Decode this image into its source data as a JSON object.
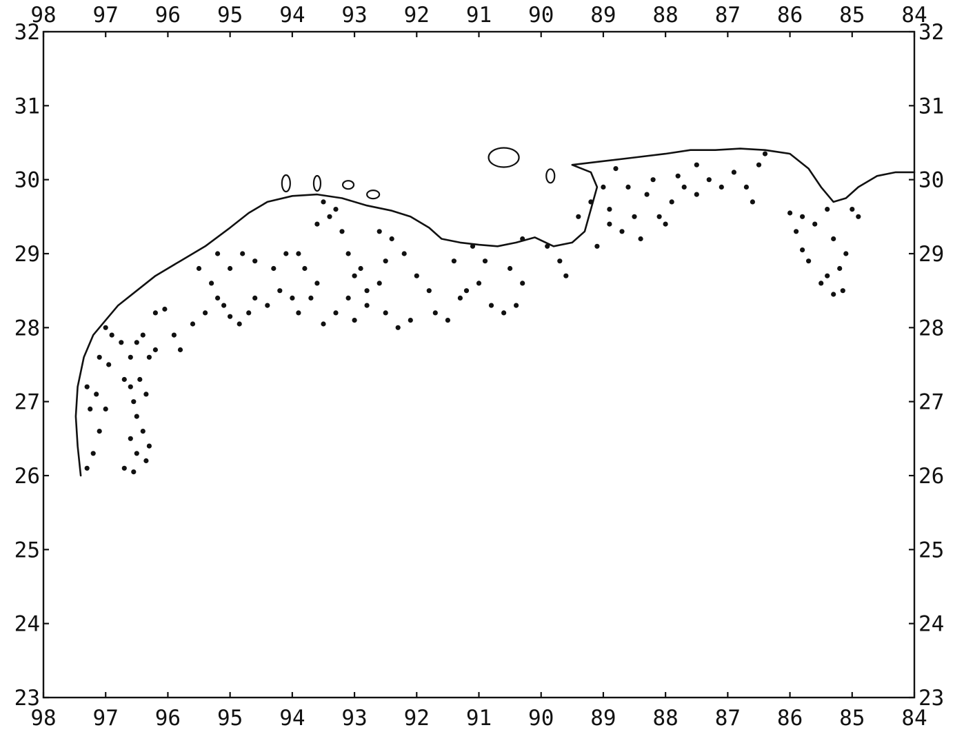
{
  "map": {
    "lon_range": [
      98,
      84
    ],
    "lat_range": [
      23,
      32
    ],
    "lon_ticks": [
      "98",
      "97",
      "96",
      "95",
      "94",
      "93",
      "92",
      "91",
      "90",
      "89",
      "88",
      "87",
      "86",
      "85",
      "84"
    ],
    "lat_ticks": [
      "23",
      "24",
      "25",
      "26",
      "27",
      "28",
      "29",
      "30",
      "31",
      "32"
    ],
    "colors": {
      "ink": "#111111",
      "background": "#ffffff"
    },
    "coastline": [
      [
        97.4,
        26.0
      ],
      [
        97.45,
        26.4
      ],
      [
        97.48,
        26.8
      ],
      [
        97.45,
        27.2
      ],
      [
        97.35,
        27.6
      ],
      [
        97.2,
        27.9
      ],
      [
        97.0,
        28.1
      ],
      [
        96.8,
        28.3
      ],
      [
        96.5,
        28.5
      ],
      [
        96.2,
        28.7
      ],
      [
        95.8,
        28.9
      ],
      [
        95.4,
        29.1
      ],
      [
        95.0,
        29.35
      ],
      [
        94.7,
        29.55
      ],
      [
        94.4,
        29.7
      ],
      [
        94.0,
        29.78
      ],
      [
        93.6,
        29.8
      ],
      [
        93.2,
        29.75
      ],
      [
        92.8,
        29.65
      ],
      [
        92.4,
        29.58
      ],
      [
        92.1,
        29.5
      ],
      [
        91.8,
        29.35
      ],
      [
        91.6,
        29.2
      ],
      [
        91.3,
        29.15
      ],
      [
        91.0,
        29.12
      ],
      [
        90.7,
        29.1
      ],
      [
        90.4,
        29.15
      ],
      [
        90.1,
        29.22
      ],
      [
        89.8,
        29.1
      ],
      [
        89.5,
        29.15
      ],
      [
        89.3,
        29.3
      ],
      [
        89.2,
        29.6
      ],
      [
        89.1,
        29.9
      ],
      [
        89.2,
        30.1
      ],
      [
        89.5,
        30.2
      ],
      [
        89.0,
        30.25
      ],
      [
        88.5,
        30.3
      ],
      [
        88.0,
        30.35
      ],
      [
        87.6,
        30.4
      ],
      [
        87.2,
        30.4
      ],
      [
        86.8,
        30.42
      ],
      [
        86.4,
        30.4
      ],
      [
        86.0,
        30.35
      ],
      [
        85.7,
        30.15
      ],
      [
        85.5,
        29.9
      ],
      [
        85.3,
        29.7
      ],
      [
        85.1,
        29.75
      ],
      [
        84.9,
        29.9
      ],
      [
        84.6,
        30.05
      ],
      [
        84.3,
        30.1
      ],
      [
        84.0,
        30.1
      ]
    ],
    "stations": [
      [
        97.3,
        26.1
      ],
      [
        97.2,
        26.3
      ],
      [
        97.1,
        26.6
      ],
      [
        97.0,
        26.9
      ],
      [
        97.15,
        27.1
      ],
      [
        97.3,
        27.2
      ],
      [
        97.25,
        26.9
      ],
      [
        96.95,
        27.5
      ],
      [
        97.1,
        27.6
      ],
      [
        96.9,
        27.9
      ],
      [
        97.0,
        28.0
      ],
      [
        96.75,
        27.8
      ],
      [
        96.6,
        27.6
      ],
      [
        96.5,
        27.8
      ],
      [
        96.4,
        27.9
      ],
      [
        96.3,
        27.6
      ],
      [
        96.2,
        27.7
      ],
      [
        96.7,
        27.3
      ],
      [
        96.6,
        27.2
      ],
      [
        96.45,
        27.3
      ],
      [
        96.35,
        27.1
      ],
      [
        96.55,
        27.0
      ],
      [
        96.5,
        26.8
      ],
      [
        96.4,
        26.6
      ],
      [
        96.6,
        26.5
      ],
      [
        96.5,
        26.3
      ],
      [
        96.3,
        26.4
      ],
      [
        96.7,
        26.1
      ],
      [
        96.55,
        26.05
      ],
      [
        96.35,
        26.2
      ],
      [
        96.2,
        28.2
      ],
      [
        96.05,
        28.25
      ],
      [
        95.9,
        27.9
      ],
      [
        95.8,
        27.7
      ],
      [
        95.6,
        28.05
      ],
      [
        95.4,
        28.2
      ],
      [
        95.2,
        28.4
      ],
      [
        95.1,
        28.3
      ],
      [
        95.0,
        28.15
      ],
      [
        94.85,
        28.05
      ],
      [
        94.7,
        28.2
      ],
      [
        94.6,
        28.4
      ],
      [
        94.4,
        28.3
      ],
      [
        94.2,
        28.5
      ],
      [
        94.0,
        28.4
      ],
      [
        95.3,
        28.6
      ],
      [
        95.0,
        28.8
      ],
      [
        94.8,
        29.0
      ],
      [
        94.6,
        28.9
      ],
      [
        94.3,
        28.8
      ],
      [
        94.1,
        29.0
      ],
      [
        95.2,
        29.0
      ],
      [
        95.5,
        28.8
      ],
      [
        93.9,
        28.2
      ],
      [
        93.7,
        28.4
      ],
      [
        93.6,
        28.6
      ],
      [
        93.8,
        28.8
      ],
      [
        93.9,
        29.0
      ],
      [
        93.6,
        29.4
      ],
      [
        93.4,
        29.5
      ],
      [
        93.2,
        29.3
      ],
      [
        93.1,
        29.0
      ],
      [
        93.0,
        28.7
      ],
      [
        92.8,
        28.5
      ],
      [
        92.6,
        28.6
      ],
      [
        92.5,
        28.9
      ],
      [
        92.4,
        29.2
      ],
      [
        92.6,
        29.3
      ],
      [
        92.2,
        29.0
      ],
      [
        92.0,
        28.7
      ],
      [
        91.8,
        28.5
      ],
      [
        91.7,
        28.2
      ],
      [
        92.1,
        28.1
      ],
      [
        92.3,
        28.0
      ],
      [
        92.5,
        28.2
      ],
      [
        92.8,
        28.3
      ],
      [
        93.0,
        28.1
      ],
      [
        93.3,
        28.2
      ],
      [
        93.5,
        28.05
      ],
      [
        93.1,
        28.4
      ],
      [
        92.9,
        28.8
      ],
      [
        93.3,
        29.6
      ],
      [
        93.5,
        29.7
      ],
      [
        91.5,
        28.1
      ],
      [
        91.3,
        28.4
      ],
      [
        91.0,
        28.6
      ],
      [
        90.8,
        28.3
      ],
      [
        90.6,
        28.2
      ],
      [
        90.4,
        28.3
      ],
      [
        90.3,
        28.6
      ],
      [
        90.5,
        28.8
      ],
      [
        90.9,
        28.9
      ],
      [
        91.1,
        29.1
      ],
      [
        91.4,
        28.9
      ],
      [
        91.2,
        28.5
      ],
      [
        90.3,
        29.2
      ],
      [
        89.9,
        29.1
      ],
      [
        89.7,
        28.9
      ],
      [
        89.6,
        28.7
      ],
      [
        89.4,
        29.5
      ],
      [
        89.2,
        29.7
      ],
      [
        89.0,
        29.9
      ],
      [
        88.9,
        29.6
      ],
      [
        88.7,
        29.3
      ],
      [
        88.5,
        29.5
      ],
      [
        88.3,
        29.8
      ],
      [
        88.1,
        29.5
      ],
      [
        87.9,
        29.7
      ],
      [
        87.7,
        29.9
      ],
      [
        87.5,
        29.8
      ],
      [
        87.3,
        30.0
      ],
      [
        87.1,
        29.9
      ],
      [
        86.9,
        30.1
      ],
      [
        86.7,
        29.9
      ],
      [
        86.5,
        30.2
      ],
      [
        86.4,
        30.35
      ],
      [
        86.6,
        29.7
      ],
      [
        88.6,
        29.9
      ],
      [
        88.8,
        30.15
      ],
      [
        88.2,
        30.0
      ],
      [
        87.8,
        30.05
      ],
      [
        87.5,
        30.2
      ],
      [
        89.1,
        29.1
      ],
      [
        88.9,
        29.4
      ],
      [
        88.4,
        29.2
      ],
      [
        88.0,
        29.4
      ],
      [
        86.0,
        29.55
      ],
      [
        85.9,
        29.3
      ],
      [
        85.8,
        29.05
      ],
      [
        85.7,
        28.9
      ],
      [
        85.6,
        29.4
      ],
      [
        85.4,
        29.6
      ],
      [
        85.3,
        29.2
      ],
      [
        85.2,
        28.8
      ],
      [
        85.15,
        28.5
      ],
      [
        85.3,
        28.45
      ],
      [
        85.4,
        28.7
      ],
      [
        85.1,
        29.0
      ],
      [
        84.9,
        29.5
      ],
      [
        85.0,
        29.6
      ],
      [
        85.5,
        28.6
      ],
      [
        85.8,
        29.5
      ]
    ]
  }
}
